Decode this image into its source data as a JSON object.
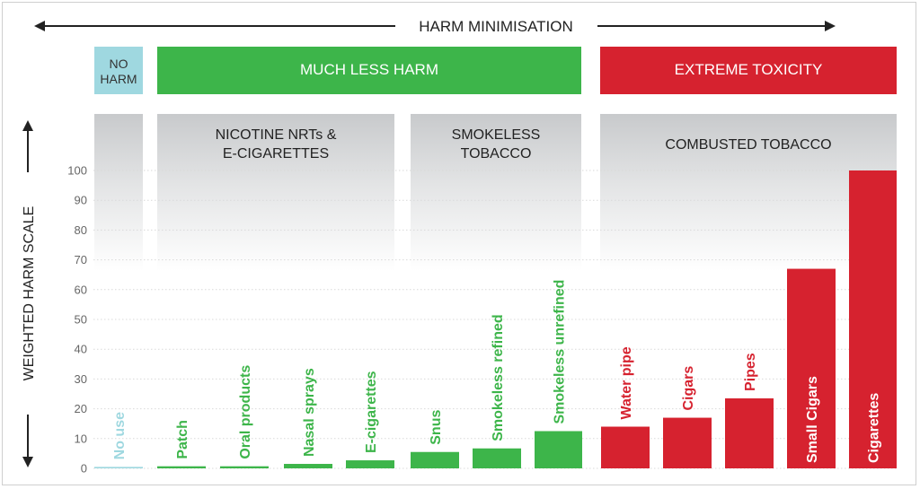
{
  "chart_data": {
    "type": "bar",
    "title": "HARM MINIMISATION",
    "ylabel": "WEIGHTED HARM SCALE",
    "ylim": [
      0,
      100
    ],
    "yticks": [
      0,
      10,
      20,
      30,
      40,
      50,
      60,
      70,
      80,
      90,
      100
    ],
    "grid": true,
    "categories": [
      "No use",
      "Patch",
      "Oral products",
      "Nasal sprays",
      "E-cigarettes",
      "Snus",
      "Smokeless refined",
      "Smokeless unrefined",
      "Water pipe",
      "Cigars",
      "Pipes",
      "Small Cigars",
      "Cigarettes"
    ],
    "values": [
      0.5,
      0.7,
      0.7,
      1.5,
      2.7,
      5.5,
      6.7,
      12.5,
      14,
      17,
      23.5,
      67,
      100
    ],
    "bar_colors": [
      "#9fd8e0",
      "#3db54a",
      "#3db54a",
      "#3db54a",
      "#3db54a",
      "#3db54a",
      "#3db54a",
      "#3db54a",
      "#d6222f",
      "#d6222f",
      "#d6222f",
      "#d6222f",
      "#d6222f"
    ],
    "label_colors": [
      "#9fd8e0",
      "#3db54a",
      "#3db54a",
      "#3db54a",
      "#3db54a",
      "#3db54a",
      "#3db54a",
      "#3db54a",
      "#d6222f",
      "#d6222f",
      "#d6222f",
      "#ffffff",
      "#ffffff"
    ],
    "harm_bands": [
      {
        "label": [
          "NO",
          "HARM"
        ],
        "color": "#9fd8e0",
        "text_color": "#333333"
      },
      {
        "label": [
          "MUCH LESS HARM"
        ],
        "color": "#3db54a",
        "text_color": "#ffffff"
      },
      {
        "label": [
          "EXTREME TOXICITY"
        ],
        "color": "#d6222f",
        "text_color": "#ffffff"
      }
    ],
    "groups": [
      {
        "label": [
          ""
        ]
      },
      {
        "label": [
          "NICOTINE NRTs &",
          "E-CIGARETTES"
        ]
      },
      {
        "label": [
          "SMOKELESS",
          "TOBACCO"
        ]
      },
      {
        "label": [
          "COMBUSTED TOBACCO"
        ]
      }
    ],
    "colors": {
      "text": "#222222",
      "tick": "#666666",
      "grid": "#d9d9d9",
      "group_fill": "#cdcfd1"
    }
  }
}
